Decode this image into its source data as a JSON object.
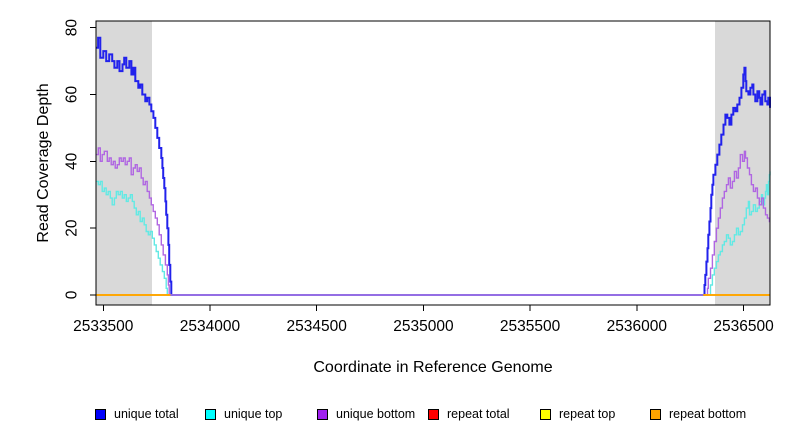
{
  "chart_data": {
    "type": "line",
    "interpolation": "step-after",
    "title": "",
    "xlabel": "Coordinate in Reference Genome",
    "ylabel": "Read Coverage Depth",
    "xlim": [
      2533466,
      2536624
    ],
    "ylim": [
      -3,
      82
    ],
    "grid": false,
    "legend_position": "bottom",
    "x_ticks": [
      2533500,
      2534000,
      2534500,
      2535000,
      2535500,
      2536000,
      2536500
    ],
    "x_tick_labels": [
      "2533500",
      "2534000",
      "2534500",
      "2535000",
      "2535500",
      "2536000",
      "2536500"
    ],
    "y_ticks": [
      0,
      20,
      40,
      60,
      80
    ],
    "y_tick_labels": [
      "0",
      "20",
      "40",
      "60",
      "80"
    ],
    "shaded_regions": [
      {
        "x0": 2533466,
        "x1": 2533728,
        "color": "#d9d9d9"
      },
      {
        "x0": 2536366,
        "x1": 2536624,
        "color": "#d9d9d9"
      }
    ],
    "series": [
      {
        "id": "unique-total",
        "name": "unique total",
        "color": "#2222ec",
        "legend_color": "#0000fa",
        "width": 2,
        "segments": [
          [
            [
              2533466,
              74
            ],
            [
              2533476,
              77
            ],
            [
              2533486,
              71
            ],
            [
              2533500,
              73
            ],
            [
              2533514,
              70
            ],
            [
              2533528,
              72
            ],
            [
              2533542,
              70
            ],
            [
              2533552,
              68
            ],
            [
              2533566,
              70
            ],
            [
              2533576,
              67
            ],
            [
              2533590,
              69
            ],
            [
              2533598,
              71
            ],
            [
              2533608,
              68
            ],
            [
              2533622,
              70
            ],
            [
              2533632,
              66
            ],
            [
              2533641,
              68
            ],
            [
              2533650,
              64
            ],
            [
              2533664,
              62
            ],
            [
              2533673,
              63
            ],
            [
              2533683,
              60
            ],
            [
              2533697,
              58
            ],
            [
              2533706,
              59
            ],
            [
              2533716,
              57
            ],
            [
              2533725,
              55
            ],
            [
              2533735,
              53
            ],
            [
              2533744,
              50
            ],
            [
              2533753,
              47
            ],
            [
              2533762,
              44
            ],
            [
              2533772,
              41
            ],
            [
              2533777,
              38
            ],
            [
              2533781,
              35
            ],
            [
              2533786,
              32
            ],
            [
              2533791,
              28
            ],
            [
              2533795,
              24
            ],
            [
              2533800,
              20
            ],
            [
              2533805,
              15
            ],
            [
              2533809,
              9
            ],
            [
              2533814,
              4
            ],
            [
              2533819,
              0
            ],
            [
              2536312,
              0
            ],
            [
              2536317,
              3
            ],
            [
              2536321,
              6
            ],
            [
              2536326,
              10
            ],
            [
              2536331,
              14
            ],
            [
              2536335,
              18
            ],
            [
              2536340,
              22
            ],
            [
              2536345,
              26
            ],
            [
              2536349,
              30
            ],
            [
              2536354,
              33
            ],
            [
              2536359,
              36
            ],
            [
              2536368,
              39
            ],
            [
              2536377,
              42
            ],
            [
              2536387,
              45
            ],
            [
              2536396,
              48
            ],
            [
              2536406,
              51
            ],
            [
              2536415,
              54
            ],
            [
              2536424,
              53
            ],
            [
              2536434,
              51
            ],
            [
              2536443,
              54
            ],
            [
              2536452,
              56
            ],
            [
              2536462,
              55
            ],
            [
              2536471,
              57
            ],
            [
              2536481,
              59
            ],
            [
              2536490,
              62
            ],
            [
              2536499,
              66
            ],
            [
              2536504,
              68
            ],
            [
              2536509,
              64
            ],
            [
              2536513,
              61
            ],
            [
              2536523,
              60
            ],
            [
              2536532,
              62
            ],
            [
              2536541,
              63
            ],
            [
              2536546,
              60
            ],
            [
              2536555,
              58
            ],
            [
              2536565,
              61
            ],
            [
              2536574,
              59
            ],
            [
              2536579,
              57
            ],
            [
              2536588,
              60
            ],
            [
              2536598,
              61
            ],
            [
              2536602,
              58
            ],
            [
              2536612,
              57
            ],
            [
              2536616,
              59
            ],
            [
              2536624,
              56
            ]
          ]
        ]
      },
      {
        "id": "unique-top",
        "name": "unique top",
        "color": "#62e9e4",
        "legend_color": "#00ffff",
        "width": 1.4,
        "segments": [
          [
            [
              2533466,
              34
            ],
            [
              2533477,
              33
            ],
            [
              2533486,
              34
            ],
            [
              2533495,
              31
            ],
            [
              2533505,
              32
            ],
            [
              2533514,
              30
            ],
            [
              2533523,
              31
            ],
            [
              2533533,
              29
            ],
            [
              2533542,
              27
            ],
            [
              2533552,
              29
            ],
            [
              2533561,
              31
            ],
            [
              2533570,
              30
            ],
            [
              2533580,
              31
            ],
            [
              2533589,
              29
            ],
            [
              2533598,
              30
            ],
            [
              2533608,
              28
            ],
            [
              2533617,
              29
            ],
            [
              2533627,
              30
            ],
            [
              2533636,
              28
            ],
            [
              2533645,
              26
            ],
            [
              2533655,
              24
            ],
            [
              2533664,
              25
            ],
            [
              2533673,
              22
            ],
            [
              2533683,
              23
            ],
            [
              2533692,
              21
            ],
            [
              2533701,
              19
            ],
            [
              2533711,
              18
            ],
            [
              2533720,
              19
            ],
            [
              2533730,
              17
            ],
            [
              2533739,
              15
            ],
            [
              2533748,
              13
            ],
            [
              2533758,
              11
            ],
            [
              2533767,
              9
            ],
            [
              2533777,
              7
            ],
            [
              2533786,
              5
            ],
            [
              2533795,
              2
            ],
            [
              2533800,
              0
            ],
            [
              2536335,
              0
            ],
            [
              2536345,
              3
            ],
            [
              2536354,
              6
            ],
            [
              2536363,
              8
            ],
            [
              2536373,
              10
            ],
            [
              2536382,
              12
            ],
            [
              2536391,
              13
            ],
            [
              2536401,
              15
            ],
            [
              2536410,
              16
            ],
            [
              2536420,
              18
            ],
            [
              2536429,
              17
            ],
            [
              2536438,
              15
            ],
            [
              2536448,
              16
            ],
            [
              2536457,
              18
            ],
            [
              2536467,
              20
            ],
            [
              2536476,
              18
            ],
            [
              2536485,
              19
            ],
            [
              2536495,
              21
            ],
            [
              2536504,
              23
            ],
            [
              2536513,
              26
            ],
            [
              2536523,
              28
            ],
            [
              2536528,
              24
            ],
            [
              2536537,
              25
            ],
            [
              2536546,
              27
            ],
            [
              2536556,
              25
            ],
            [
              2536565,
              26
            ],
            [
              2536574,
              28
            ],
            [
              2536584,
              30
            ],
            [
              2536589,
              27
            ],
            [
              2536598,
              29
            ],
            [
              2536603,
              31
            ],
            [
              2536607,
              33
            ],
            [
              2536612,
              30
            ],
            [
              2536617,
              34
            ],
            [
              2536621,
              36
            ],
            [
              2536624,
              37
            ]
          ]
        ]
      },
      {
        "id": "unique-bottom",
        "name": "unique bottom",
        "color": "#b066e2",
        "legend_color": "#a020f0",
        "width": 1.4,
        "segments": [
          [
            [
              2533466,
              42
            ],
            [
              2533477,
              44
            ],
            [
              2533486,
              40
            ],
            [
              2533495,
              42
            ],
            [
              2533505,
              43
            ],
            [
              2533519,
              40
            ],
            [
              2533528,
              41
            ],
            [
              2533537,
              39
            ],
            [
              2533547,
              40
            ],
            [
              2533556,
              38
            ],
            [
              2533566,
              39
            ],
            [
              2533575,
              41
            ],
            [
              2533584,
              40
            ],
            [
              2533594,
              41
            ],
            [
              2533603,
              39
            ],
            [
              2533612,
              40
            ],
            [
              2533622,
              41
            ],
            [
              2533631,
              36
            ],
            [
              2533641,
              38
            ],
            [
              2533650,
              39
            ],
            [
              2533659,
              37
            ],
            [
              2533669,
              38
            ],
            [
              2533678,
              35
            ],
            [
              2533687,
              33
            ],
            [
              2533697,
              34
            ],
            [
              2533706,
              31
            ],
            [
              2533716,
              29
            ],
            [
              2533725,
              27
            ],
            [
              2533734,
              25
            ],
            [
              2533744,
              23
            ],
            [
              2533753,
              21
            ],
            [
              2533762,
              18
            ],
            [
              2533772,
              15
            ],
            [
              2533781,
              12
            ],
            [
              2533791,
              9
            ],
            [
              2533800,
              6
            ],
            [
              2533805,
              3
            ],
            [
              2533809,
              0
            ],
            [
              2536326,
              0
            ],
            [
              2536331,
              2
            ],
            [
              2536335,
              5
            ],
            [
              2536345,
              8
            ],
            [
              2536354,
              12
            ],
            [
              2536363,
              16
            ],
            [
              2536373,
              20
            ],
            [
              2536382,
              23
            ],
            [
              2536391,
              26
            ],
            [
              2536401,
              29
            ],
            [
              2536410,
              31
            ],
            [
              2536420,
              33
            ],
            [
              2536429,
              35
            ],
            [
              2536438,
              32
            ],
            [
              2536448,
              34
            ],
            [
              2536457,
              37
            ],
            [
              2536467,
              35
            ],
            [
              2536476,
              38
            ],
            [
              2536485,
              42
            ],
            [
              2536495,
              40
            ],
            [
              2536504,
              43
            ],
            [
              2536509,
              41
            ],
            [
              2536518,
              38
            ],
            [
              2536528,
              36
            ],
            [
              2536537,
              33
            ],
            [
              2536546,
              31
            ],
            [
              2536556,
              32
            ],
            [
              2536565,
              29
            ],
            [
              2536574,
              27
            ],
            [
              2536584,
              29
            ],
            [
              2536593,
              26
            ],
            [
              2536603,
              24
            ],
            [
              2536612,
              23
            ],
            [
              2536621,
              22
            ],
            [
              2536624,
              22
            ]
          ]
        ]
      },
      {
        "id": "repeat-total",
        "name": "repeat total",
        "color": "#ee0000",
        "legend_color": "#ff0000",
        "width": 1.4,
        "segments": [
          [
            [
              2533466,
              0
            ],
            [
              2533814,
              0
            ]
          ],
          [
            [
              2536312,
              0
            ],
            [
              2536624,
              0
            ]
          ]
        ]
      },
      {
        "id": "repeat-top",
        "name": "repeat top",
        "color": "#ffff00",
        "legend_color": "#ffff00",
        "width": 1.4,
        "segments": [
          [
            [
              2533466,
              0
            ],
            [
              2533814,
              0
            ]
          ],
          [
            [
              2536312,
              0
            ],
            [
              2536624,
              0
            ]
          ]
        ]
      },
      {
        "id": "repeat-bottom",
        "name": "repeat bottom",
        "color": "#ffa500",
        "legend_color": "#ffa500",
        "width": 1.7,
        "segments": [
          [
            [
              2533466,
              0
            ],
            [
              2533814,
              0
            ]
          ],
          [
            [
              2536312,
              0
            ],
            [
              2536624,
              0
            ]
          ]
        ]
      }
    ]
  }
}
